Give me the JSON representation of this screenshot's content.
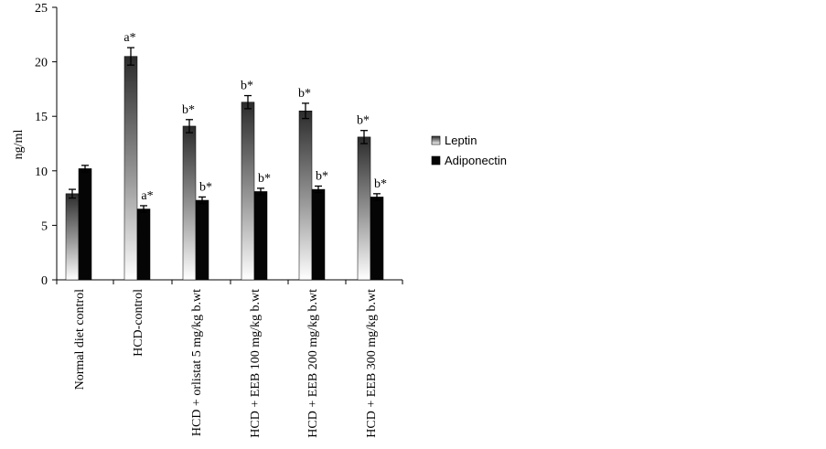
{
  "chart_data": {
    "type": "bar",
    "title": "",
    "xlabel": "",
    "ylabel": "ng/ml",
    "ylim": [
      0,
      25
    ],
    "yticks": [
      0,
      5,
      10,
      15,
      20,
      25
    ],
    "grid": false,
    "legend_position": "right",
    "categories": [
      "Normal diet control",
      "HCD-control",
      "HCD + orlistat 5 mg/kg b.wt",
      "HCD + EEB 100 mg/kg b.wt",
      "HCD + EEB 200 mg/kg b.wt",
      "HCD + EEB 300 mg/kg b.wt"
    ],
    "series": [
      {
        "name": "Leptin",
        "color": "#3a3a3a",
        "values": [
          7.9,
          20.5,
          14.1,
          16.3,
          15.5,
          13.1
        ],
        "errors": [
          0.4,
          0.8,
          0.6,
          0.6,
          0.7,
          0.6
        ],
        "labels": [
          "",
          "a*",
          "b*",
          "b*",
          "b*",
          "b*"
        ]
      },
      {
        "name": "Adiponectin",
        "color": "#050505",
        "values": [
          10.2,
          6.5,
          7.3,
          8.1,
          8.3,
          7.6
        ],
        "errors": [
          0.3,
          0.3,
          0.3,
          0.3,
          0.3,
          0.3
        ],
        "labels": [
          "",
          "a*",
          "b*",
          "b*",
          "b*",
          "b*"
        ]
      }
    ]
  }
}
